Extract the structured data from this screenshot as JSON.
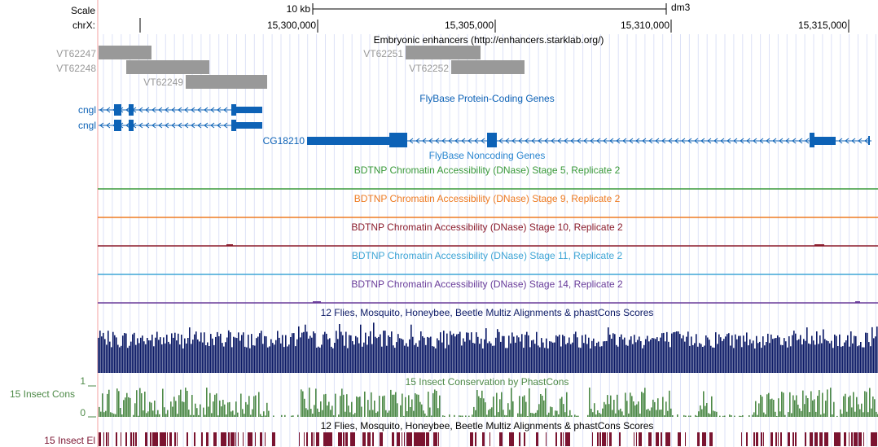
{
  "header": {
    "scale_label": "Scale",
    "chrom_label": "chrX:",
    "scale_bar_text": "10 kb",
    "assembly": "dm3",
    "positions": [
      "15,300,000",
      "15,305,000",
      "15,310,000",
      "15,315,000"
    ]
  },
  "enhancers": {
    "title": "Embryonic enhancers (http://enhancers.starklab.org/)",
    "items": [
      "VT62247",
      "VT62248",
      "VT62249",
      "VT62251",
      "VT62252"
    ],
    "color": "#999999"
  },
  "genes": {
    "title": "FlyBase Protein-Coding Genes",
    "items": [
      "cngl",
      "cngl",
      "CG18210"
    ],
    "color": "#0d62b6"
  },
  "noncoding": {
    "title": "FlyBase Noncoding Genes",
    "color": "#2a86d0"
  },
  "dnase_tracks": [
    {
      "title": "BDTNP Chromatin Accessibility (DNase) Stage 5, Replicate 2",
      "color": "#3a9a3a"
    },
    {
      "title": "BDTNP Chromatin Accessibility (DNase) Stage 9, Replicate 2",
      "color": "#ee7b22"
    },
    {
      "title": "BDTNP Chromatin Accessibility (DNase) Stage 10, Replicate 2",
      "color": "#8b1c2c"
    },
    {
      "title": "BDTNP Chromatin Accessibility (DNase) Stage 11, Replicate 2",
      "color": "#3fa6d6"
    },
    {
      "title": "BDTNP Chromatin Accessibility (DNase) Stage 14, Replicate 2",
      "color": "#6a3d9a"
    }
  ],
  "multiz": {
    "title": "12 Flies, Mosquito, Honeybee, Beetle Multiz Alignments & phastCons Scores",
    "color": "#0c1a66"
  },
  "phastcons": {
    "title": "15 Insect Conservation by PhastCons",
    "side_label": "15 Insect Cons",
    "axis_max": "1",
    "axis_min": "0",
    "color": "#4e8a48"
  },
  "elements": {
    "title": "12 Flies, Mosquito, Honeybee, Beetle Multiz Alignments & phastCons Scores",
    "side_label": "15 Insect El",
    "color": "#7a1430"
  }
}
